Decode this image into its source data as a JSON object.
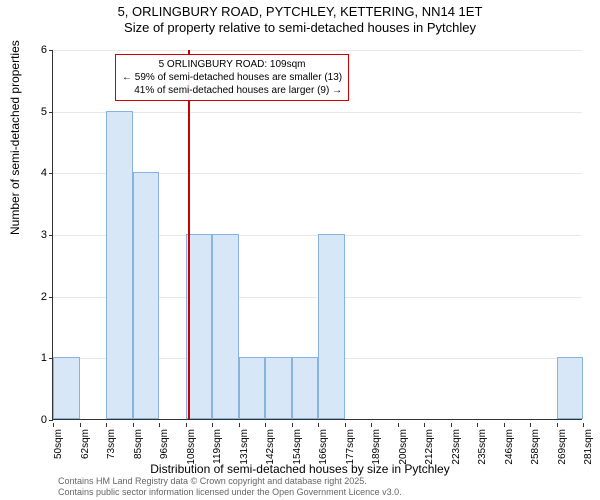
{
  "title_main": "5, ORLINGBURY ROAD, PYTCHLEY, KETTERING, NN14 1ET",
  "title_sub": "Size of property relative to semi-detached houses in Pytchley",
  "chart": {
    "type": "histogram",
    "ylabel": "Number of semi-detached properties",
    "xlabel": "Distribution of semi-detached houses by size in Pytchley",
    "ylim": [
      0,
      6
    ],
    "yticks": [
      0,
      1,
      2,
      3,
      4,
      5,
      6
    ],
    "xticks": [
      "50sqm",
      "62sqm",
      "73sqm",
      "85sqm",
      "96sqm",
      "108sqm",
      "119sqm",
      "131sqm",
      "142sqm",
      "154sqm",
      "166sqm",
      "177sqm",
      "189sqm",
      "200sqm",
      "212sqm",
      "223sqm",
      "235sqm",
      "246sqm",
      "258sqm",
      "269sqm",
      "281sqm"
    ],
    "bars": [
      {
        "bin": 0,
        "value": 1
      },
      {
        "bin": 1,
        "value": 0
      },
      {
        "bin": 2,
        "value": 5
      },
      {
        "bin": 3,
        "value": 4
      },
      {
        "bin": 4,
        "value": 0
      },
      {
        "bin": 5,
        "value": 3
      },
      {
        "bin": 6,
        "value": 3
      },
      {
        "bin": 7,
        "value": 1
      },
      {
        "bin": 8,
        "value": 1
      },
      {
        "bin": 9,
        "value": 1
      },
      {
        "bin": 10,
        "value": 3
      },
      {
        "bin": 11,
        "value": 0
      },
      {
        "bin": 12,
        "value": 0
      },
      {
        "bin": 13,
        "value": 0
      },
      {
        "bin": 14,
        "value": 0
      },
      {
        "bin": 15,
        "value": 0
      },
      {
        "bin": 16,
        "value": 0
      },
      {
        "bin": 17,
        "value": 0
      },
      {
        "bin": 18,
        "value": 0
      },
      {
        "bin": 19,
        "value": 1
      }
    ],
    "bar_fill": "#d7e7f7",
    "bar_border": "#88b3de",
    "grid_color": "#e8e8e8",
    "background_color": "#ffffff",
    "marker": {
      "bin_position": 5.1,
      "color": "#cc0000"
    },
    "annotation": {
      "line1": "5 ORLINGBURY ROAD: 109sqm",
      "line2": "← 59% of semi-detached houses are smaller (13)",
      "line3": "41% of semi-detached houses are larger (9) →",
      "border_color": "#cc0000"
    }
  },
  "footer": {
    "line1": "Contains HM Land Registry data © Crown copyright and database right 2025.",
    "line2": "Contains public sector information licensed under the Open Government Licence v3.0."
  }
}
